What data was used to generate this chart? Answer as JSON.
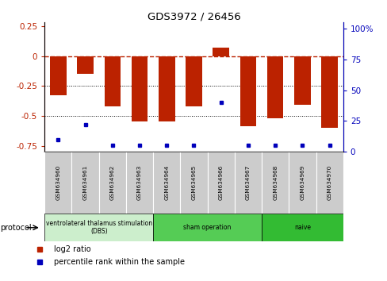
{
  "title": "GDS3972 / 26456",
  "samples": [
    "GSM634960",
    "GSM634961",
    "GSM634962",
    "GSM634963",
    "GSM634964",
    "GSM634965",
    "GSM634966",
    "GSM634967",
    "GSM634968",
    "GSM634969",
    "GSM634970"
  ],
  "log2_ratio": [
    -0.33,
    -0.15,
    -0.42,
    -0.55,
    -0.55,
    -0.42,
    0.07,
    -0.59,
    -0.52,
    -0.41,
    -0.6
  ],
  "percentile_rank": [
    10,
    22,
    5,
    5,
    5,
    5,
    40,
    5,
    5,
    5,
    5
  ],
  "bar_color": "#bb2200",
  "dot_color": "#0000bb",
  "ylim_left": [
    -0.8,
    0.28
  ],
  "ylim_right": [
    0,
    105
  ],
  "yticks_left": [
    0.25,
    0.0,
    -0.25,
    -0.5,
    -0.75
  ],
  "yticks_right": [
    100,
    75,
    50,
    25,
    0
  ],
  "hline_y": 0.0,
  "dotted_lines": [
    -0.25,
    -0.5
  ],
  "protocol_groups": [
    {
      "label": "ventrolateral thalamus stimulation\n(DBS)",
      "start": 0,
      "end": 3,
      "color": "#cceecc"
    },
    {
      "label": "sham operation",
      "start": 4,
      "end": 7,
      "color": "#66dd66"
    },
    {
      "label": "naive",
      "start": 8,
      "end": 10,
      "color": "#44cc44"
    }
  ],
  "protocol_label": "protocol",
  "legend_red": "log2 ratio",
  "legend_blue": "percentile rank within the sample",
  "bar_width": 0.6
}
